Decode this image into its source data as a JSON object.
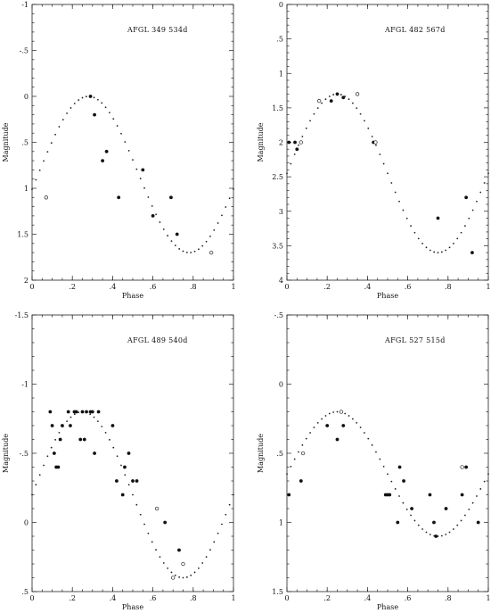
{
  "chart_data": [
    {
      "type": "scatter",
      "title": "AFGL 349   534d",
      "xlabel": "Phase",
      "ylabel": "Magnitude",
      "xlim": [
        0,
        1
      ],
      "ylim": [
        2,
        -1
      ],
      "x_ticks": [
        0,
        0.2,
        0.4,
        0.6,
        0.8,
        1
      ],
      "x_tick_labels": [
        "0",
        ".2",
        ".4",
        ".6",
        ".8",
        "1"
      ],
      "y_ticks": [
        -1,
        -0.5,
        0,
        0.5,
        1,
        1.5,
        2
      ],
      "y_tick_labels": [
        "-1",
        "-.5",
        "0",
        ".5",
        "1",
        "1.5",
        "2"
      ],
      "fit_curve": {
        "mean": 0.85,
        "amplitude": 0.85,
        "peak_phase": 0.28
      },
      "series": [
        {
          "marker": "filled",
          "x": [
            0.29,
            0.31,
            0.35,
            0.37,
            0.43,
            0.55,
            0.6,
            0.69,
            0.72
          ],
          "y": [
            0.0,
            0.2,
            0.7,
            0.6,
            1.1,
            0.8,
            1.3,
            1.1,
            1.5
          ]
        },
        {
          "marker": "open",
          "x": [
            0.07,
            0.89
          ],
          "y": [
            1.1,
            1.7
          ]
        }
      ]
    },
    {
      "type": "scatter",
      "title": "AFGL 482   567d",
      "xlabel": "Phase",
      "ylabel": "Magnitude",
      "xlim": [
        0,
        1
      ],
      "ylim": [
        4,
        0
      ],
      "x_ticks": [
        0,
        0.2,
        0.4,
        0.6,
        0.8,
        1
      ],
      "x_tick_labels": [
        "0",
        ".2",
        ".4",
        ".6",
        ".8",
        "1"
      ],
      "y_ticks": [
        0,
        0.5,
        1,
        1.5,
        2,
        2.5,
        3,
        3.5,
        4
      ],
      "y_tick_labels": [
        "0",
        ".5",
        "1",
        "1.5",
        "2",
        "2.5",
        "3",
        "3.5",
        "4"
      ],
      "fit_curve": {
        "mean": 2.45,
        "amplitude": 1.15,
        "peak_phase": 0.25
      },
      "series": [
        {
          "marker": "filled",
          "x": [
            0.01,
            0.04,
            0.05,
            0.22,
            0.25,
            0.28,
            0.43,
            0.75,
            0.89,
            0.92
          ],
          "y": [
            2.0,
            2.0,
            2.1,
            1.4,
            1.3,
            1.35,
            2.0,
            3.1,
            2.8,
            3.6
          ]
        },
        {
          "marker": "open",
          "x": [
            0.07,
            0.16,
            0.35,
            0.44
          ],
          "y": [
            2.0,
            1.4,
            1.3,
            2.0
          ]
        }
      ]
    },
    {
      "type": "scatter",
      "title": "AFGL 489   540d",
      "xlabel": "Phase",
      "ylabel": "Magnitude",
      "xlim": [
        0,
        1
      ],
      "ylim": [
        0.5,
        -1.5
      ],
      "x_ticks": [
        0,
        0.2,
        0.4,
        0.6,
        0.8,
        1
      ],
      "x_tick_labels": [
        "0",
        ".2",
        ".4",
        ".6",
        ".8",
        "1"
      ],
      "y_ticks": [
        -1.5,
        -1,
        -0.5,
        0,
        0.5
      ],
      "y_tick_labels": [
        "-1.5",
        "-1",
        "-.5",
        "0",
        ".5"
      ],
      "fit_curve": {
        "mean": -0.2,
        "amplitude": 0.6,
        "peak_phase": 0.25
      },
      "series": [
        {
          "marker": "filled",
          "x": [
            0.09,
            0.1,
            0.11,
            0.12,
            0.13,
            0.14,
            0.15,
            0.18,
            0.19,
            0.21,
            0.22,
            0.24,
            0.25,
            0.26,
            0.27,
            0.29,
            0.3,
            0.31,
            0.33,
            0.4,
            0.42,
            0.45,
            0.46,
            0.48,
            0.5,
            0.52,
            0.66,
            0.73
          ],
          "y": [
            -0.8,
            -0.7,
            -0.5,
            -0.4,
            -0.4,
            -0.6,
            -0.7,
            -0.8,
            -0.7,
            -0.8,
            -0.8,
            -0.6,
            -0.8,
            -0.6,
            -0.8,
            -0.8,
            -0.8,
            -0.5,
            -0.8,
            -0.7,
            -0.3,
            -0.2,
            -0.4,
            -0.5,
            -0.3,
            -0.3,
            0.0,
            0.2
          ]
        },
        {
          "marker": "open",
          "x": [
            0.62,
            0.7,
            0.75
          ],
          "y": [
            -0.1,
            0.4,
            0.3
          ]
        }
      ]
    },
    {
      "type": "scatter",
      "title": "AFGL 527   515d",
      "xlabel": "Phase",
      "ylabel": "Magnitude",
      "xlim": [
        0,
        1
      ],
      "ylim": [
        1.5,
        -0.5
      ],
      "x_ticks": [
        0,
        0.2,
        0.4,
        0.6,
        0.8,
        1
      ],
      "x_tick_labels": [
        "0",
        ".2",
        ".4",
        ".6",
        ".8",
        "1"
      ],
      "y_ticks": [
        -0.5,
        0,
        0.5,
        1,
        1.5
      ],
      "y_tick_labels": [
        "-.5",
        "0",
        ".5",
        "1",
        "1.5"
      ],
      "fit_curve": {
        "mean": 0.65,
        "amplitude": 0.45,
        "peak_phase": 0.25
      },
      "series": [
        {
          "marker": "filled",
          "x": [
            0.01,
            0.07,
            0.2,
            0.25,
            0.28,
            0.49,
            0.5,
            0.51,
            0.55,
            0.56,
            0.58,
            0.62,
            0.71,
            0.73,
            0.74,
            0.79,
            0.87,
            0.89,
            0.95
          ],
          "y": [
            0.8,
            0.7,
            0.3,
            0.4,
            0.3,
            0.8,
            0.8,
            0.8,
            1.0,
            0.6,
            0.7,
            0.9,
            0.8,
            1.0,
            1.1,
            0.9,
            0.8,
            0.6,
            1.0
          ]
        },
        {
          "marker": "open",
          "x": [
            0.08,
            0.27,
            0.87
          ],
          "y": [
            0.5,
            0.2,
            0.6
          ]
        }
      ]
    }
  ]
}
